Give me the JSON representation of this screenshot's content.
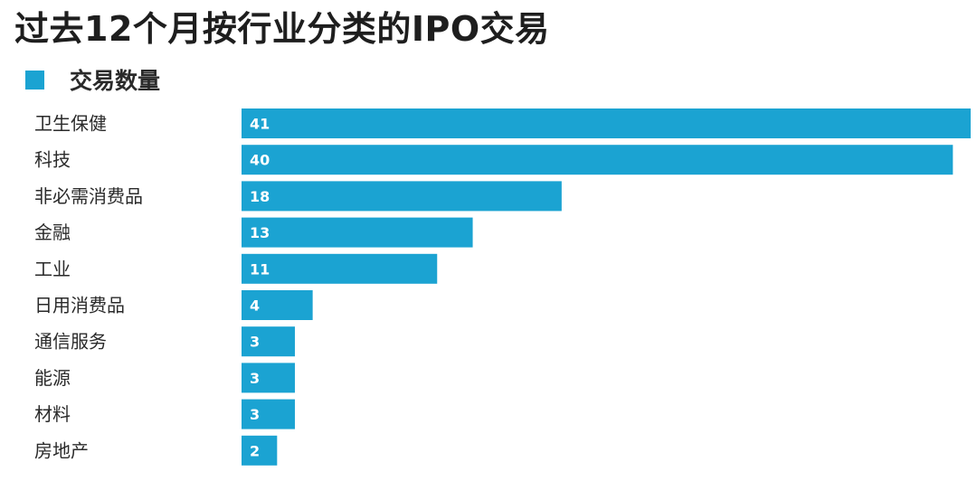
{
  "chart_data": {
    "type": "bar",
    "orientation": "horizontal",
    "title": "过去12个月按行业分类的IPO交易",
    "legend": {
      "placement": "top-left"
    },
    "categories": [
      "卫生保健",
      "科技",
      "非必需消费品",
      "金融",
      "工业",
      "日用消费品",
      "通信服务",
      "能源",
      "材料",
      "房地产"
    ],
    "series": [
      {
        "name": "交易数量",
        "values": [
          41,
          40,
          18,
          13,
          11,
          4,
          3,
          3,
          3,
          2
        ],
        "color": "#1ba3d2"
      }
    ],
    "xlim": [
      0,
      41
    ],
    "grid": false
  }
}
